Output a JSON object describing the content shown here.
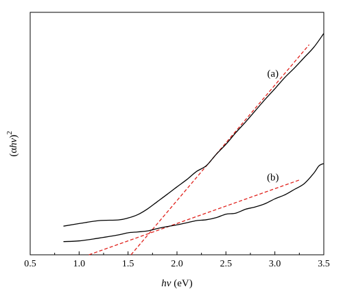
{
  "chart_data": {
    "type": "line",
    "title": "",
    "xlabel": {
      "var": "hν",
      "unit": " (eV)"
    },
    "ylabel": {
      "open": "(α",
      "var": "hν",
      "close": ")",
      "sup": "2"
    },
    "xlim": [
      0.5,
      3.5
    ],
    "xticks": [
      0.5,
      1.0,
      1.5,
      2.0,
      2.5,
      3.0,
      3.5
    ],
    "xtick_labels": [
      "0.5",
      "1.0",
      "1.5",
      "2.0",
      "2.5",
      "3.0",
      "3.5"
    ],
    "ylim": [
      0,
      1
    ],
    "yticks_shown": false,
    "grid": false,
    "series": [
      {
        "name": "(a)",
        "color": "#000000",
        "x": [
          0.84,
          1.0,
          1.2,
          1.4,
          1.5,
          1.6,
          1.7,
          1.8,
          1.9,
          2.0,
          2.1,
          2.2,
          2.3,
          2.4,
          2.5,
          2.6,
          2.7,
          2.8,
          2.9,
          3.0,
          3.1,
          3.2,
          3.3,
          3.4,
          3.5
        ],
        "y": [
          0.134,
          0.146,
          0.16,
          0.163,
          0.172,
          0.188,
          0.215,
          0.249,
          0.283,
          0.318,
          0.352,
          0.39,
          0.417,
          0.47,
          0.517,
          0.571,
          0.621,
          0.674,
          0.727,
          0.777,
          0.829,
          0.874,
          0.923,
          0.972,
          1.036
        ]
      },
      {
        "name": "(b)",
        "color": "#000000",
        "x": [
          0.84,
          1.0,
          1.2,
          1.4,
          1.5,
          1.6,
          1.7,
          1.8,
          1.9,
          2.0,
          2.1,
          2.2,
          2.3,
          2.4,
          2.5,
          2.6,
          2.7,
          2.8,
          2.9,
          3.0,
          3.1,
          3.2,
          3.3,
          3.4,
          3.45,
          3.5
        ],
        "y": [
          0.062,
          0.065,
          0.078,
          0.093,
          0.103,
          0.107,
          0.112,
          0.123,
          0.132,
          0.14,
          0.15,
          0.16,
          0.164,
          0.174,
          0.19,
          0.195,
          0.213,
          0.224,
          0.239,
          0.262,
          0.28,
          0.306,
          0.333,
          0.383,
          0.416,
          0.427
        ]
      }
    ],
    "fits": [
      {
        "for": "(a)",
        "color": "#e0201b",
        "style": "dashed",
        "x": [
          1.53,
          3.35
        ],
        "y": [
          0.0,
          0.983
        ]
      },
      {
        "for": "(b)",
        "color": "#e0201b",
        "style": "dashed",
        "x": [
          1.1,
          3.25
        ],
        "y": [
          0.0,
          0.35
        ]
      }
    ],
    "annotations": [
      {
        "text": "(a)",
        "x": 2.98,
        "y": 0.833
      },
      {
        "text": "(b)",
        "x": 2.98,
        "y": 0.347
      }
    ]
  }
}
